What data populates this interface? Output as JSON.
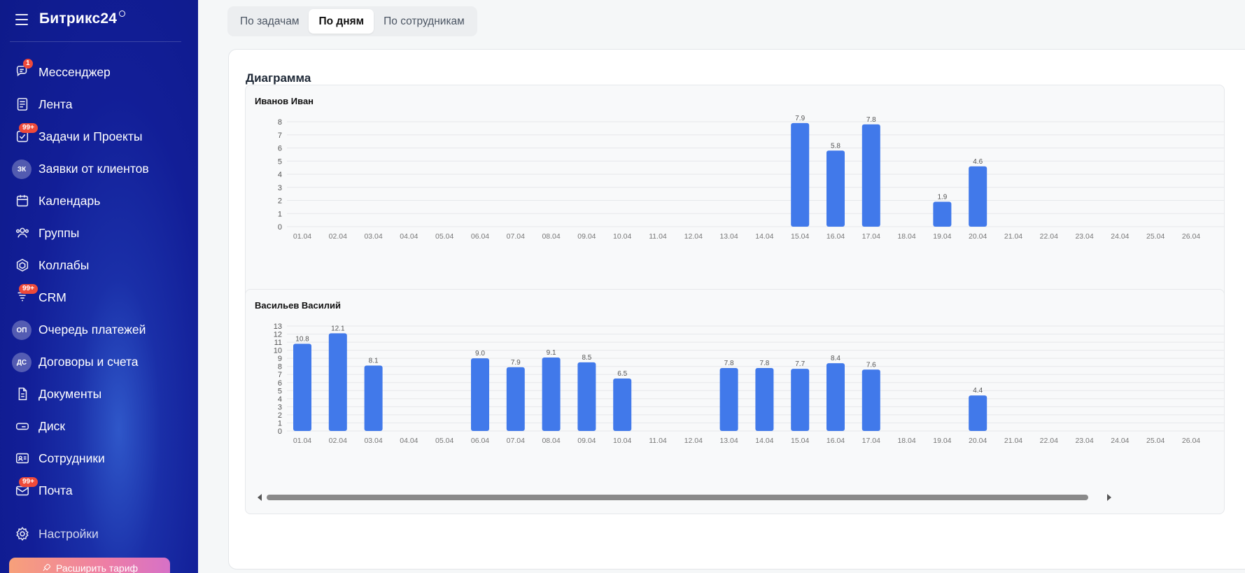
{
  "sidebar": {
    "logo": "Битрикс24",
    "items": [
      {
        "label": "Мессенджер",
        "icon": "messenger-icon",
        "badge": "1"
      },
      {
        "label": "Лента",
        "icon": "feed-icon",
        "badge": ""
      },
      {
        "label": "Задачи и Проекты",
        "icon": "tasks-icon",
        "badge": "99+"
      },
      {
        "label": "Заявки от клиентов",
        "icon": "",
        "abbr": "ЗК",
        "badge": ""
      },
      {
        "label": "Календарь",
        "icon": "calendar-icon",
        "badge": ""
      },
      {
        "label": "Группы",
        "icon": "groups-icon",
        "badge": ""
      },
      {
        "label": "Коллабы",
        "icon": "collabs-icon",
        "badge": ""
      },
      {
        "label": "CRM",
        "icon": "crm-icon",
        "badge": "99+"
      },
      {
        "label": "Очередь платежей",
        "icon": "",
        "abbr": "ОП",
        "badge": ""
      },
      {
        "label": "Договоры и счета",
        "icon": "",
        "abbr": "ДС",
        "badge": ""
      },
      {
        "label": "Документы",
        "icon": "documents-icon",
        "badge": ""
      },
      {
        "label": "Диск",
        "icon": "disk-icon",
        "badge": ""
      },
      {
        "label": "Сотрудники",
        "icon": "employees-icon",
        "badge": ""
      },
      {
        "label": "Почта",
        "icon": "mail-icon",
        "badge": "99+"
      }
    ],
    "settings_label": "Настройки",
    "upgrade_label": "Расширить тариф"
  },
  "tabs": [
    {
      "label": "По задачам",
      "active": false
    },
    {
      "label": "По дням",
      "active": true
    },
    {
      "label": "По сотрудникам",
      "active": false
    }
  ],
  "card": {
    "title": "Диаграмма"
  },
  "colors": {
    "bar": "#4179ea",
    "sidebar": "#121e97",
    "badge": "#ef4a3a"
  },
  "chart_data": [
    {
      "type": "bar",
      "title": "Иванов Иван",
      "categories": [
        "01.04",
        "02.04",
        "03.04",
        "04.04",
        "05.04",
        "06.04",
        "07.04",
        "08.04",
        "09.04",
        "10.04",
        "11.04",
        "12.04",
        "13.04",
        "14.04",
        "15.04",
        "16.04",
        "17.04",
        "18.04",
        "19.04",
        "20.04",
        "21.04",
        "22.04",
        "23.04",
        "24.04",
        "25.04",
        "26.04"
      ],
      "values": [
        null,
        null,
        null,
        null,
        null,
        null,
        null,
        null,
        null,
        null,
        null,
        null,
        null,
        null,
        7.9,
        5.8,
        7.8,
        null,
        1.9,
        4.6,
        null,
        null,
        null,
        null,
        null,
        null
      ],
      "yticks": [
        0,
        1,
        2,
        3,
        4,
        5,
        6,
        7,
        8
      ],
      "ylim": [
        0,
        8.4
      ],
      "grid": true
    },
    {
      "type": "bar",
      "title": "Васильев Василий",
      "categories": [
        "01.04",
        "02.04",
        "03.04",
        "04.04",
        "05.04",
        "06.04",
        "07.04",
        "08.04",
        "09.04",
        "10.04",
        "11.04",
        "12.04",
        "13.04",
        "14.04",
        "15.04",
        "16.04",
        "17.04",
        "18.04",
        "19.04",
        "20.04",
        "21.04",
        "22.04",
        "23.04",
        "24.04",
        "25.04",
        "26.04"
      ],
      "values": [
        10.8,
        12.1,
        8.1,
        null,
        null,
        9.0,
        7.9,
        9.1,
        8.5,
        6.5,
        null,
        null,
        7.8,
        7.8,
        7.7,
        8.4,
        7.6,
        null,
        null,
        4.4,
        null,
        null,
        null,
        null,
        null,
        null
      ],
      "yticks": [
        0,
        1,
        2,
        3,
        4,
        5,
        6,
        7,
        8,
        9,
        10,
        11,
        12,
        13
      ],
      "ylim": [
        0,
        13
      ],
      "grid": true
    }
  ]
}
